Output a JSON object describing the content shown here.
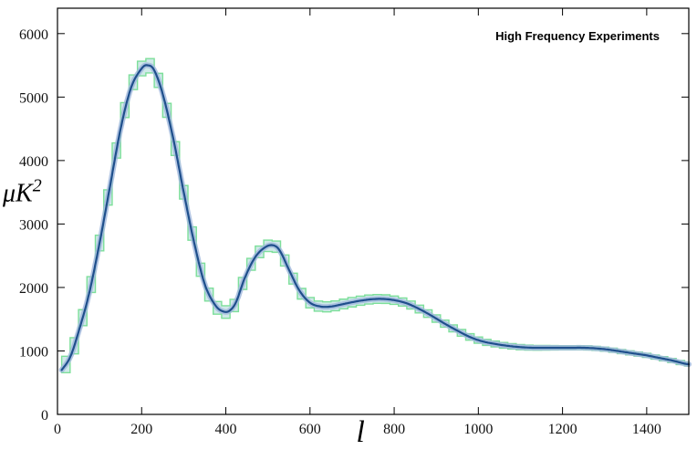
{
  "chart_data": {
    "type": "line",
    "title": "",
    "legend": {
      "text": "High Frequency Experiments",
      "placement": "top-right"
    },
    "xlabel": "l",
    "ylabel_main": "μK",
    "ylabel_sup": "2",
    "xlim": [
      0,
      1500
    ],
    "ylim": [
      0,
      6400
    ],
    "xticks": [
      0,
      200,
      400,
      600,
      800,
      1000,
      1200,
      1400
    ],
    "yticks": [
      0,
      1000,
      2000,
      3000,
      4000,
      5000,
      6000
    ],
    "grid": false,
    "colors": {
      "band_fill": "#cfe9e8",
      "band_edge": "#7ddf9a",
      "curve": "#1f4f8c",
      "curve_glow": "#9fb6dc"
    },
    "series": [
      {
        "band_width": 130,
        "x": [
          10,
          30,
          50,
          75,
          100,
          125,
          150,
          175,
          200,
          215,
          230,
          250,
          275,
          300,
          325,
          350,
          375,
          395,
          410,
          425,
          445,
          470,
          495,
          515,
          530,
          550,
          575,
          600,
          625,
          650,
          680,
          710,
          740,
          770,
          800,
          830,
          860,
          890,
          920,
          950,
          980,
          1010,
          1040,
          1070,
          1100,
          1130,
          1160,
          1190,
          1220,
          1250,
          1280,
          1310,
          1340,
          1370,
          1400,
          1430,
          1460,
          1490,
          1500
        ],
        "y": [
          700,
          900,
          1300,
          1900,
          2700,
          3600,
          4500,
          5150,
          5450,
          5500,
          5420,
          5050,
          4350,
          3500,
          2700,
          2050,
          1720,
          1620,
          1640,
          1780,
          2150,
          2480,
          2640,
          2660,
          2560,
          2280,
          1950,
          1760,
          1700,
          1700,
          1740,
          1780,
          1810,
          1820,
          1800,
          1750,
          1660,
          1550,
          1430,
          1320,
          1220,
          1150,
          1110,
          1080,
          1060,
          1050,
          1050,
          1050,
          1050,
          1050,
          1040,
          1020,
          990,
          960,
          930,
          890,
          850,
          800,
          790
        ]
      }
    ]
  }
}
